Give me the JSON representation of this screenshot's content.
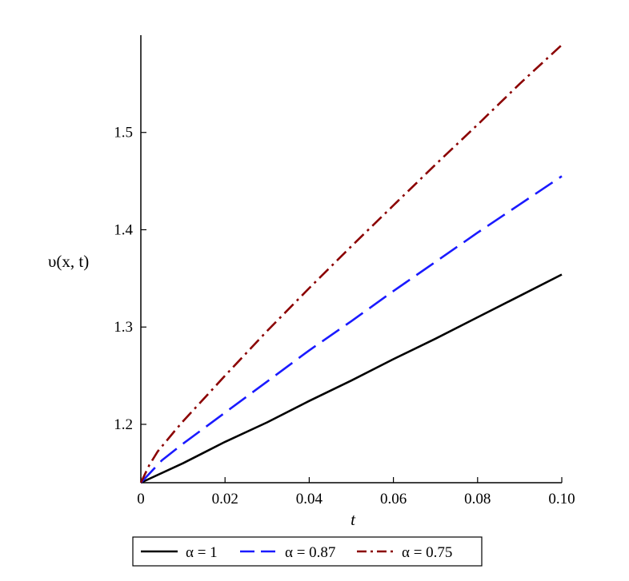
{
  "chart_data": {
    "type": "line",
    "title": "",
    "xlabel": "t",
    "ylabel": "υ(x, t)",
    "xlim": [
      0,
      0.1
    ],
    "ylim": [
      1.14,
      1.6
    ],
    "x_ticks": [
      0,
      0.02,
      0.04,
      0.06,
      0.08,
      0.1
    ],
    "x_tick_labels": [
      "0",
      "0.02",
      "0.04",
      "0.06",
      "0.08",
      "0.10"
    ],
    "y_ticks": [
      1.2,
      1.3,
      1.4,
      1.5
    ],
    "y_tick_labels": [
      "1.2",
      "1.3",
      "1.4",
      "1.5"
    ],
    "grid": false,
    "legend_position": "bottom",
    "series": [
      {
        "name": "α = 1",
        "color": "#000000",
        "dash": "solid",
        "x": [
          0,
          0.01,
          0.02,
          0.03,
          0.04,
          0.05,
          0.06,
          0.07,
          0.08,
          0.09,
          0.1
        ],
        "y": [
          1.14,
          1.16,
          1.182,
          1.202,
          1.224,
          1.245,
          1.267,
          1.288,
          1.31,
          1.332,
          1.354
        ]
      },
      {
        "name": "α = 0.87",
        "color": "#1a1aff",
        "dash": "dash",
        "x": [
          0,
          0.005,
          0.01,
          0.02,
          0.03,
          0.04,
          0.05,
          0.06,
          0.07,
          0.08,
          0.09,
          0.1
        ],
        "y": [
          1.14,
          1.163,
          1.18,
          1.212,
          1.244,
          1.276,
          1.306,
          1.337,
          1.367,
          1.397,
          1.426,
          1.455
        ]
      },
      {
        "name": "α = 0.75",
        "color": "#8b0000",
        "dash": "dashdot",
        "x": [
          0,
          0.002,
          0.004,
          0.008,
          0.01,
          0.02,
          0.03,
          0.04,
          0.05,
          0.06,
          0.07,
          0.08,
          0.09,
          0.1
        ],
        "y": [
          1.14,
          1.158,
          1.172,
          1.193,
          1.203,
          1.25,
          1.296,
          1.34,
          1.383,
          1.425,
          1.467,
          1.508,
          1.55,
          1.59
        ]
      }
    ]
  }
}
